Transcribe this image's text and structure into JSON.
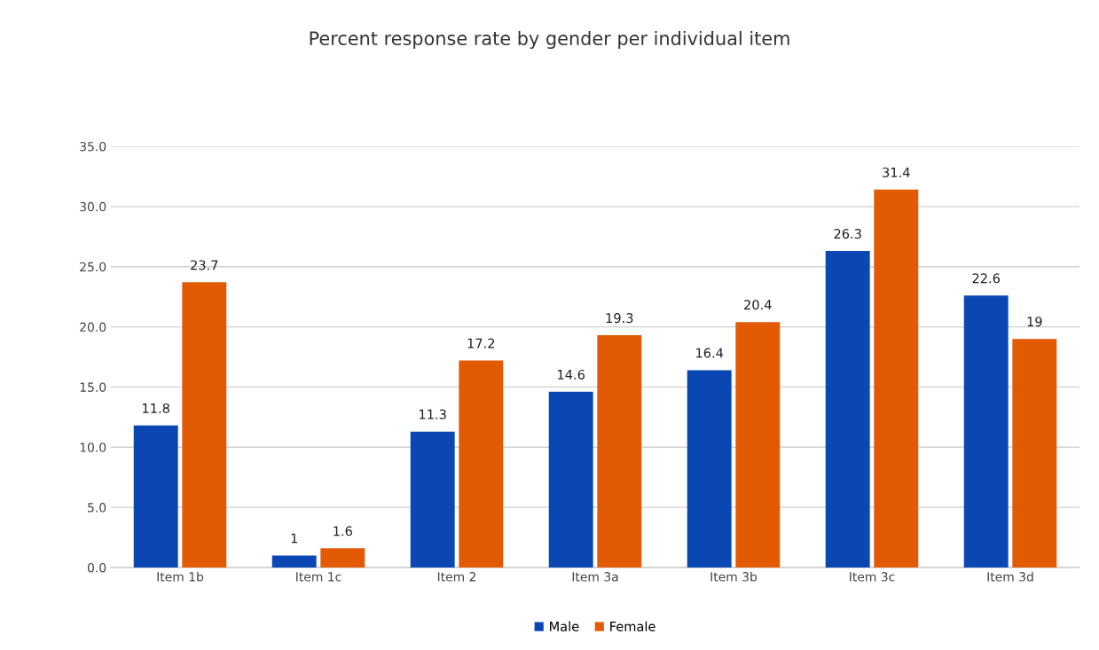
{
  "chart_data": {
    "type": "bar",
    "title": "Percent response rate by gender per individual item",
    "categories": [
      "Item 1b",
      "Item 1c",
      "Item 2",
      "Item 3a",
      "Item 3b",
      "Item 3c",
      "Item 3d"
    ],
    "series": [
      {
        "name": "Male",
        "color": "#0a47b3",
        "values": [
          11.8,
          1,
          11.3,
          14.6,
          16.4,
          26.3,
          22.6
        ]
      },
      {
        "name": "Female",
        "color": "#e35a05",
        "values": [
          23.7,
          1.6,
          17.2,
          19.3,
          20.4,
          31.4,
          19
        ]
      }
    ],
    "ylim": [
      0,
      35
    ],
    "yticks": [
      {
        "value": 0,
        "label": "0.0"
      },
      {
        "value": 5,
        "label": "5.0"
      },
      {
        "value": 10,
        "label": "10.0"
      },
      {
        "value": 15,
        "label": "15.0"
      },
      {
        "value": 20,
        "label": "20.0"
      },
      {
        "value": 25,
        "label": "25.0"
      },
      {
        "value": 30,
        "label": "30.0"
      },
      {
        "value": 35,
        "label": "35.0"
      }
    ],
    "grid": "y",
    "legend": "bottom",
    "data_labels": true
  }
}
